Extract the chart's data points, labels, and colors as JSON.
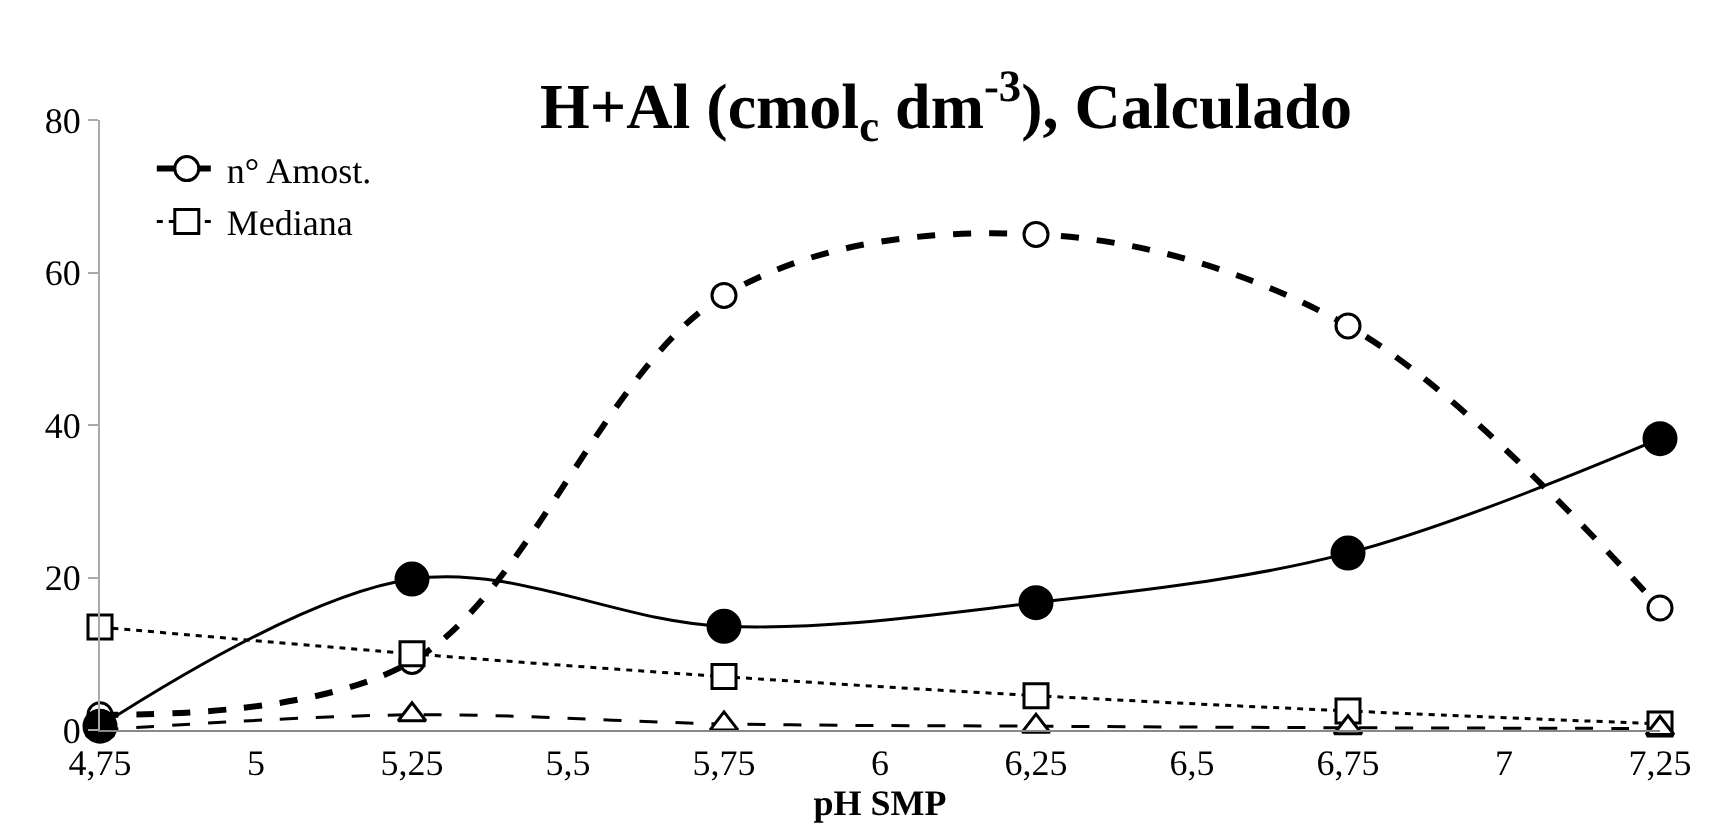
{
  "chart_data": {
    "type": "line",
    "title": "H+Al (cmol$_{c}$ dm$^{-3}$), Calculado",
    "xlabel": "pH SMP",
    "x": [
      4.75,
      5.25,
      5.75,
      6.25,
      6.75,
      7.25
    ],
    "series": [
      {
        "name": "n° Amost.",
        "color": "#000000",
        "values": [
          2,
          9,
          57,
          65,
          53,
          16
        ],
        "marker": "circle",
        "line_style": "dashed"
      },
      {
        "name": "Mediana",
        "color": "#000000",
        "values": [
          13.5,
          10,
          7,
          4.5,
          2.5,
          0.8
        ],
        "marker": "square",
        "line_style": "dotted"
      },
      {
        "color": "#000000",
        "values": [
          0,
          2,
          0.8,
          0.5,
          0.3,
          0.2
        ],
        "marker": "triangle",
        "line_style": "dashed"
      },
      {
        "color": "#000000",
        "values": [
          0.5,
          19.8,
          13.6,
          16.7,
          23.2,
          38.2
        ],
        "marker": "circle",
        "line_style": "solid"
      }
    ],
    "xlim": [
      4.75,
      7.25
    ],
    "xticks": [
      {
        "value": 4.75,
        "label": "4,75"
      },
      5,
      {
        "value": 5.25,
        "label": "5,25"
      },
      {
        "value": 5.5,
        "label": "5,5"
      },
      {
        "value": 5.75,
        "label": "5,75"
      },
      6,
      {
        "value": 6.25,
        "label": "6,25"
      },
      {
        "value": 6.5,
        "label": "6,5"
      },
      {
        "value": 6.75,
        "label": "6,75"
      },
      7,
      {
        "value": 7.25,
        "label": "7,25"
      }
    ],
    "ylim": [
      0,
      80
    ],
    "yticks": [
      0,
      20,
      40,
      60,
      80
    ],
    "legend": "top left"
  }
}
